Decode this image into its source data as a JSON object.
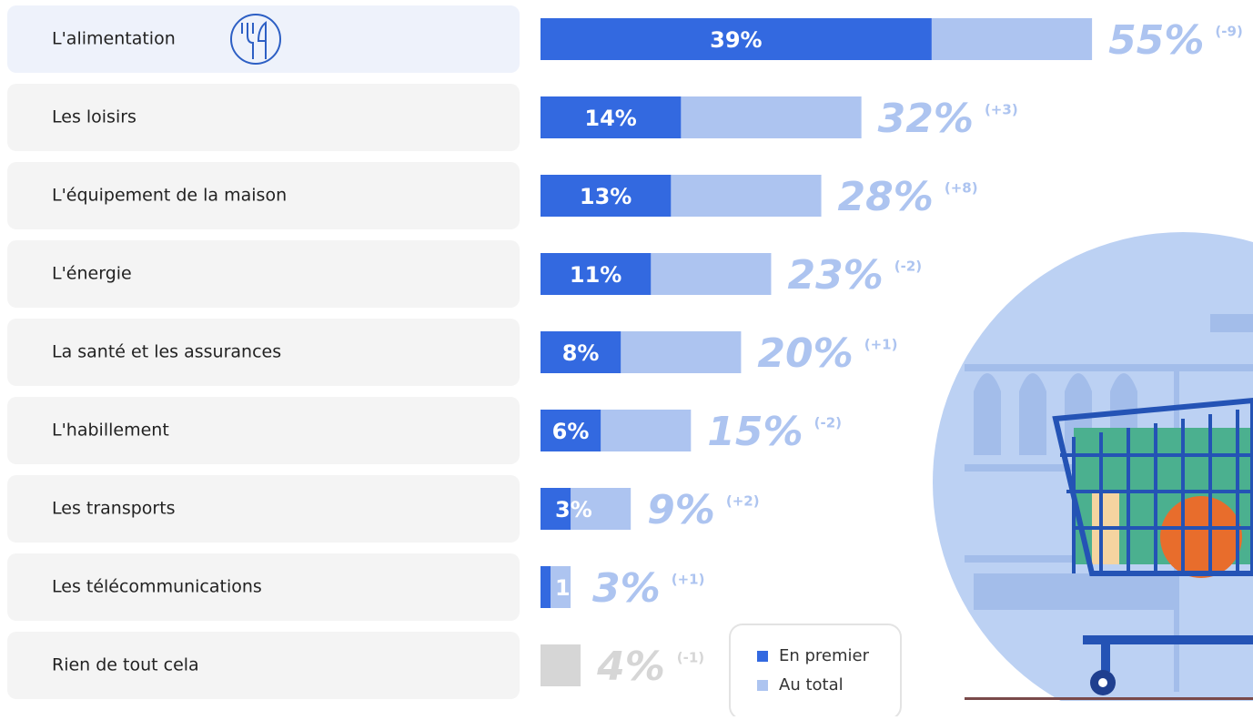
{
  "chart_data": {
    "type": "bar",
    "orientation": "horizontal",
    "categories": [
      "L'alimentation",
      "Les loisirs",
      "L'équipement de la maison",
      "L'énergie",
      "La santé et les assurances",
      "L'habillement",
      "Les transports",
      "Les télécommunications",
      "Rien de tout cela"
    ],
    "series": [
      {
        "name": "En premier",
        "color": "#3369e0",
        "values": [
          39,
          14,
          13,
          11,
          8,
          6,
          3,
          1,
          null
        ],
        "value_labels": [
          "39%",
          "14%",
          "13%",
          "11%",
          "8%",
          "6%",
          "3%",
          "1",
          null
        ]
      },
      {
        "name": "Au total",
        "color": "#adc4f0",
        "colors": [
          "#adc4f0",
          "#adc4f0",
          "#adc4f0",
          "#adc4f0",
          "#adc4f0",
          "#adc4f0",
          "#adc4f0",
          "#adc4f0",
          "#d6d6d6"
        ],
        "values": [
          55,
          32,
          28,
          23,
          20,
          15,
          9,
          3,
          4
        ],
        "value_labels": [
          "55%",
          "32%",
          "28%",
          "23%",
          "20%",
          "15%",
          "9%",
          "3%",
          "4%"
        ]
      }
    ],
    "change_labels": [
      "(-9)",
      "(+3)",
      "(+8)",
      "(-2)",
      "(+1)",
      "(-2)",
      "(+2)",
      "(+1)",
      "(-1)"
    ],
    "highlight_category": 0
  }
}
